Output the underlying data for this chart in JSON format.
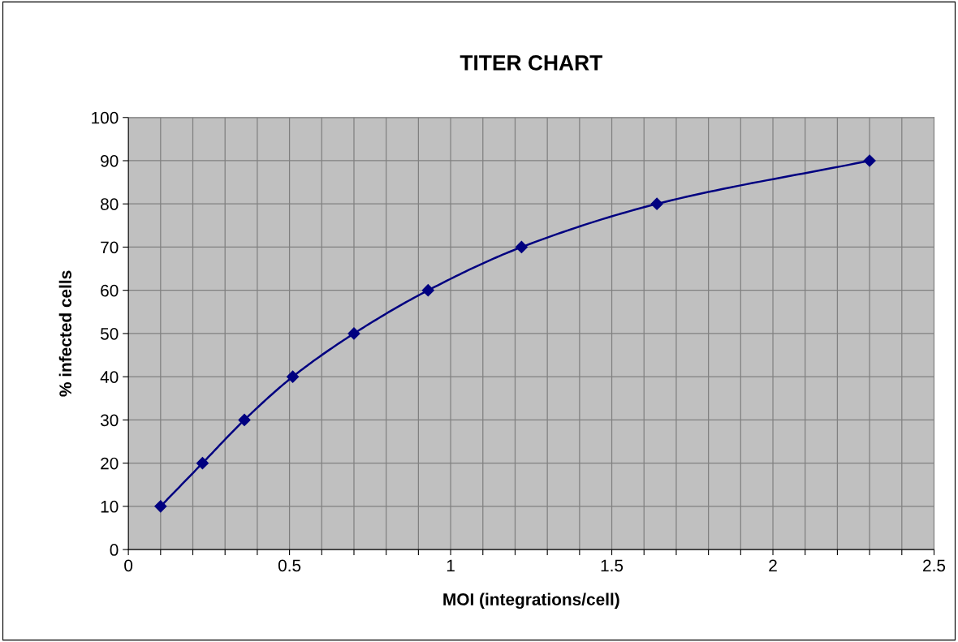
{
  "chart_data": {
    "type": "line",
    "title": "TITER CHART",
    "xlabel": "MOI (integrations/cell)",
    "ylabel": "% infected cells",
    "x": [
      0.1,
      0.23,
      0.36,
      0.51,
      0.7,
      0.93,
      1.22,
      1.64,
      2.3
    ],
    "series": [
      {
        "color": "#000080",
        "values": [
          10,
          20,
          30,
          40,
          50,
          60,
          70,
          80,
          90
        ]
      }
    ],
    "xlim": [
      0,
      2.5
    ],
    "xticks": [
      0,
      {
        "value": 0.1,
        "label": null
      },
      {
        "value": 0.2,
        "label": null
      },
      {
        "value": 0.3,
        "label": null
      },
      {
        "value": 0.4,
        "label": null
      },
      0.5,
      {
        "value": 0.6,
        "label": null
      },
      {
        "value": 0.7,
        "label": null
      },
      {
        "value": 0.8,
        "label": null
      },
      {
        "value": 0.9,
        "label": null
      },
      1,
      {
        "value": 1.1,
        "label": null
      },
      {
        "value": 1.2,
        "label": null
      },
      {
        "value": 1.3,
        "label": null
      },
      {
        "value": 1.4,
        "label": null
      },
      1.5,
      {
        "value": 1.6,
        "label": null
      },
      {
        "value": 1.7,
        "label": null
      },
      {
        "value": 1.8,
        "label": null
      },
      {
        "value": 1.9,
        "label": null
      },
      2,
      {
        "value": 2.1,
        "label": null
      },
      {
        "value": 2.2,
        "label": null
      },
      {
        "value": 2.3,
        "label": null
      },
      {
        "value": 2.4,
        "label": null
      },
      2.5
    ],
    "ylim": [
      0,
      100
    ],
    "yticks": [
      0,
      10,
      20,
      30,
      40,
      50,
      60,
      70,
      80,
      90,
      100
    ],
    "grid": true,
    "marker": "diamond",
    "line_style": "solid"
  }
}
